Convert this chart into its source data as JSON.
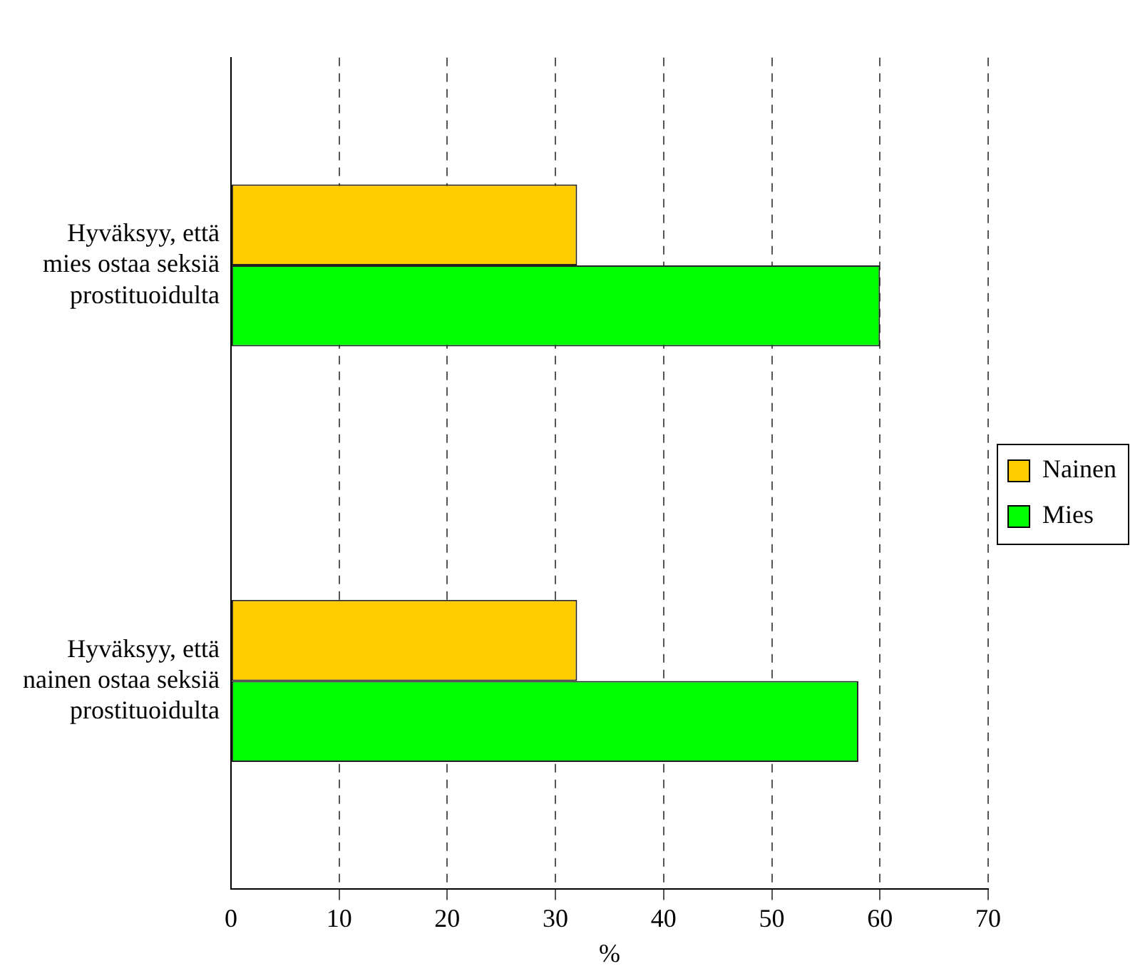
{
  "chart_data": {
    "type": "bar",
    "orientation": "horizontal",
    "xlabel": "%",
    "categories": [
      "Hyväksyy, että mies ostaa seksiä prostituoidulta",
      "Hyväksyy, että nainen ostaa seksiä prostituoidulta"
    ],
    "series": [
      {
        "name": "Nainen",
        "color": "#ffcc00",
        "values": [
          32,
          32
        ]
      },
      {
        "name": "Mies",
        "color": "#00ff00",
        "values": [
          60,
          58
        ]
      }
    ],
    "xlim": [
      0,
      70
    ],
    "xticks": [
      0,
      10,
      20,
      30,
      40,
      50,
      60,
      70
    ],
    "grid": "x",
    "legend": "right"
  }
}
